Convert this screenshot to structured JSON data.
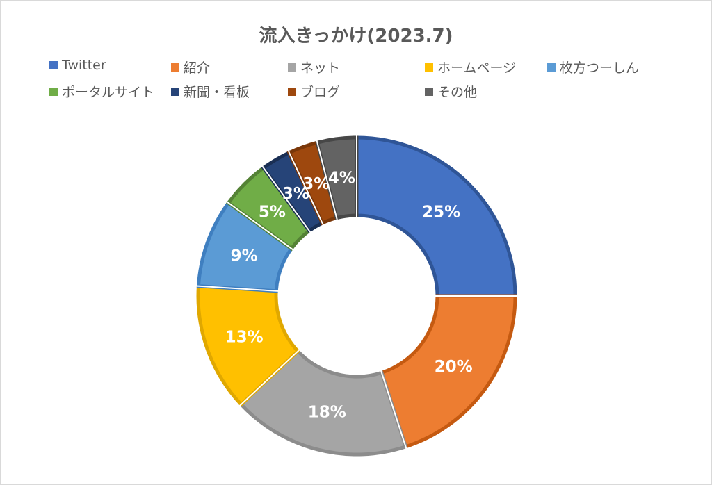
{
  "chart_data": {
    "type": "pie",
    "title": "流入きっかけ(2023.7)",
    "legend_position": "top",
    "categories": [
      "Twitter",
      "紹介",
      "ネット",
      "ホームページ",
      "枚方つーしん",
      "ポータルサイト",
      "新聞・看板",
      "ブログ",
      "その他"
    ],
    "values": [
      25,
      20,
      18,
      13,
      9,
      5,
      3,
      3,
      4
    ],
    "labels": [
      "25%",
      "20%",
      "18%",
      "13%",
      "9%",
      "5%",
      "3%",
      "3%",
      "4%"
    ],
    "colors": [
      "#4472c4",
      "#ed7d31",
      "#a5a5a5",
      "#ffc000",
      "#5b9bd5",
      "#70ad47",
      "#264478",
      "#9e480e",
      "#636363"
    ],
    "border_colors": [
      "#2f5597",
      "#c55a11",
      "#8c8c8c",
      "#e0a800",
      "#3f7fc0",
      "#548235",
      "#1a2f54",
      "#7a3709",
      "#474747"
    ]
  }
}
